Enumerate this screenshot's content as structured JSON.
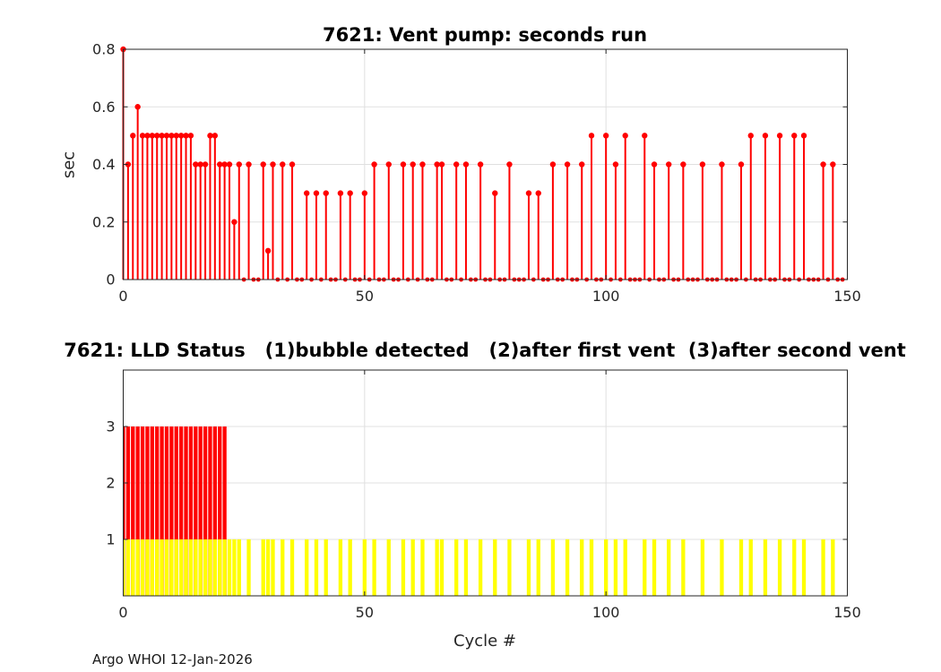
{
  "figure": {
    "footer": "Argo WHOI 12-Jan-2026",
    "background": "#ffffff"
  },
  "colors": {
    "stem": "#ff0000",
    "bar_red": "#ff0000",
    "bar_yellow": "#ffff00",
    "grid": "#e0e0e0",
    "axis": "#262626",
    "tick_text": "#262626",
    "title_text": "#000000"
  },
  "chart_data": [
    {
      "type": "stem",
      "title": "7621: Vent pump: seconds run",
      "xlabel": "",
      "ylabel": "sec",
      "xlim": [
        0,
        150
      ],
      "ylim": [
        0,
        0.8
      ],
      "xticks": [
        0,
        50,
        100,
        150
      ],
      "yticks": [
        0,
        0.2,
        0.4,
        0.6,
        0.8
      ],
      "grid": true,
      "legend": "none",
      "series_color": "#ff0000",
      "x_start": 0,
      "x_step": 1,
      "values": [
        0.8,
        0.4,
        0.5,
        0.6,
        0.5,
        0.5,
        0.5,
        0.5,
        0.5,
        0.5,
        0.5,
        0.5,
        0.5,
        0.5,
        0.5,
        0.4,
        0.4,
        0.4,
        0.5,
        0.5,
        0.4,
        0.4,
        0.4,
        0.2,
        0.4,
        0,
        0.4,
        0,
        0,
        0.4,
        0.1,
        0.4,
        0,
        0.4,
        0,
        0.4,
        0,
        0,
        0.3,
        0,
        0.3,
        0,
        0.3,
        0,
        0,
        0.3,
        0,
        0.3,
        0,
        0,
        0.3,
        0,
        0.4,
        0,
        0,
        0.4,
        0,
        0,
        0.4,
        0,
        0.4,
        0,
        0.4,
        0,
        0,
        0.4,
        0.4,
        0,
        0,
        0.4,
        0,
        0.4,
        0,
        0,
        0.4,
        0,
        0,
        0.3,
        0,
        0,
        0.4,
        0,
        0,
        0,
        0.3,
        0,
        0.3,
        0,
        0,
        0.4,
        0,
        0,
        0.4,
        0,
        0,
        0.4,
        0,
        0.5,
        0,
        0,
        0.5,
        0,
        0.4,
        0,
        0.5,
        0,
        0,
        0,
        0.5,
        0,
        0.4,
        0,
        0,
        0.4,
        0,
        0,
        0.4,
        0,
        0,
        0,
        0.4,
        0,
        0,
        0,
        0.4,
        0,
        0,
        0,
        0.4,
        0,
        0.5,
        0,
        0,
        0.5,
        0,
        0,
        0.5,
        0,
        0,
        0.5,
        0,
        0.5,
        0,
        0,
        0,
        0.4,
        0,
        0.4,
        0,
        0
      ]
    },
    {
      "type": "bar",
      "title": "7621: LLD Status   (1)bubble detected   (2)after first vent  (3)after second vent",
      "xlabel": "Cycle #",
      "ylabel": "",
      "xlim": [
        0,
        150
      ],
      "ylim": [
        0,
        4
      ],
      "xticks": [
        0,
        50,
        100,
        150
      ],
      "yticks": [
        1,
        2,
        3
      ],
      "grid": true,
      "legend": "none",
      "x_start": 0,
      "x_step": 1,
      "series": [
        {
          "name": "lld-status-after-vents",
          "color": "#ff0000",
          "values": [
            3,
            3,
            3,
            3,
            3,
            3,
            3,
            3,
            3,
            3,
            3,
            3,
            3,
            3,
            3,
            3,
            3,
            3,
            3,
            3,
            3,
            3,
            0,
            0,
            0,
            0,
            0,
            0,
            0,
            0,
            0,
            0,
            0,
            0,
            0,
            0,
            0,
            0,
            0,
            0,
            0,
            0,
            0,
            0,
            0,
            0,
            0,
            0,
            0,
            0,
            0,
            0,
            0,
            0,
            0,
            0,
            0,
            0,
            0,
            0,
            0,
            0,
            0,
            0,
            0,
            0,
            0,
            0,
            0,
            0,
            0,
            0,
            0,
            0,
            0,
            0,
            0,
            0,
            0,
            0,
            0,
            0,
            0,
            0,
            0,
            0,
            0,
            0,
            0,
            0,
            0,
            0,
            0,
            0,
            0,
            0,
            0,
            0,
            0,
            0,
            0,
            0,
            0,
            0,
            0,
            0,
            0,
            0,
            0,
            0,
            0,
            0,
            0,
            0,
            0,
            0,
            0,
            0,
            0,
            0,
            0,
            0,
            0,
            0,
            0,
            0,
            0,
            0,
            0,
            0,
            0,
            0,
            0,
            0,
            0,
            0,
            0,
            0,
            0,
            0,
            0,
            0,
            0,
            0,
            0,
            0,
            0,
            0,
            0,
            0
          ]
        },
        {
          "name": "lld-status-bubble-detected",
          "color": "#ffff00",
          "values": [
            1,
            1,
            1,
            1,
            1,
            1,
            1,
            1,
            1,
            1,
            1,
            1,
            1,
            1,
            1,
            1,
            1,
            1,
            1,
            1,
            1,
            1,
            1,
            1,
            1,
            0,
            1,
            0,
            0,
            1,
            1,
            1,
            0,
            1,
            0,
            1,
            0,
            0,
            1,
            0,
            1,
            0,
            1,
            0,
            0,
            1,
            0,
            1,
            0,
            0,
            1,
            0,
            1,
            0,
            0,
            1,
            0,
            0,
            1,
            0,
            1,
            0,
            1,
            0,
            0,
            1,
            1,
            0,
            0,
            1,
            0,
            1,
            0,
            0,
            1,
            0,
            0,
            1,
            0,
            0,
            1,
            0,
            0,
            0,
            1,
            0,
            1,
            0,
            0,
            1,
            0,
            0,
            1,
            0,
            0,
            1,
            0,
            1,
            0,
            0,
            1,
            0,
            1,
            0,
            1,
            0,
            0,
            0,
            1,
            0,
            1,
            0,
            0,
            1,
            0,
            0,
            1,
            0,
            0,
            0,
            1,
            0,
            0,
            0,
            1,
            0,
            0,
            0,
            1,
            0,
            1,
            0,
            0,
            1,
            0,
            0,
            1,
            0,
            0,
            1,
            0,
            1,
            0,
            0,
            0,
            1,
            0,
            1,
            0,
            0
          ]
        }
      ]
    }
  ]
}
